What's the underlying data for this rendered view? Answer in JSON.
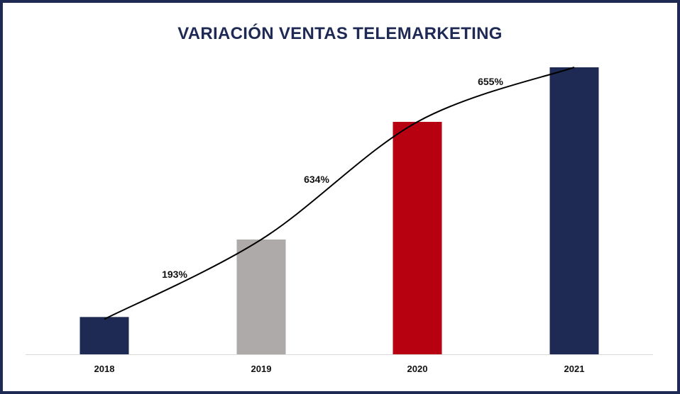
{
  "chart_data": {
    "type": "bar",
    "title": "VARIACIÓN VENTAS TELEMARKETING",
    "xlabel": "",
    "ylabel": "",
    "categories": [
      "2018",
      "2019",
      "2020",
      "2021"
    ],
    "values": [
      13,
      40,
      81,
      100
    ],
    "ylim": [
      0,
      100
    ],
    "bar_colors": [
      "#1e2a53",
      "#aeaaaa",
      "#b70010",
      "#1e2a53"
    ],
    "grid": false,
    "legend": "none",
    "trend_line": {
      "type": "line",
      "smooth": true,
      "color": "#000000"
    },
    "annotations": [
      "193%",
      "634%",
      "655%"
    ]
  }
}
